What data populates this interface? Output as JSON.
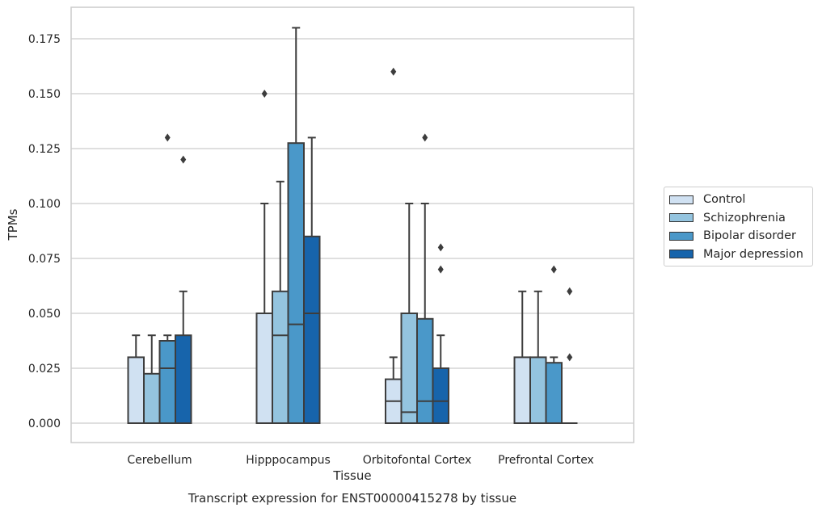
{
  "chart_data": {
    "type": "box",
    "title": "",
    "caption": "Transcript expression for ENST00000415278 by tissue",
    "xlabel": "Tissue",
    "ylabel": "TPMs",
    "ylim": [
      -0.007,
      0.183
    ],
    "yticks": [
      "0.000",
      "0.025",
      "0.050",
      "0.075",
      "0.100",
      "0.125",
      "0.150",
      "0.175"
    ],
    "grid": "horizontal",
    "legend_position": "right",
    "categories": [
      "Cerebellum",
      "Hipppocampus",
      "Orbitofontal Cortex",
      "Prefrontal Cortex"
    ],
    "series": [
      {
        "name": "Control",
        "color": "#d0e1f2",
        "boxes": [
          {
            "q1": 0.0,
            "median": 0.0,
            "q3": 0.03,
            "whisker_low": 0.0,
            "whisker_high": 0.04,
            "outliers": []
          },
          {
            "q1": 0.0,
            "median": 0.0,
            "q3": 0.05,
            "whisker_low": 0.0,
            "whisker_high": 0.1,
            "outliers": [
              0.15
            ]
          },
          {
            "q1": 0.0,
            "median": 0.01,
            "q3": 0.02,
            "whisker_low": 0.0,
            "whisker_high": 0.03,
            "outliers": [
              0.16
            ]
          },
          {
            "q1": 0.0,
            "median": 0.0,
            "q3": 0.03,
            "whisker_low": 0.0,
            "whisker_high": 0.06,
            "outliers": []
          }
        ]
      },
      {
        "name": "Schizophrenia",
        "color": "#94c4df",
        "boxes": [
          {
            "q1": 0.0,
            "median": 0.0,
            "q3": 0.0225,
            "whisker_low": 0.0,
            "whisker_high": 0.04,
            "outliers": []
          },
          {
            "q1": 0.0,
            "median": 0.04,
            "q3": 0.06,
            "whisker_low": 0.0,
            "whisker_high": 0.11,
            "outliers": []
          },
          {
            "q1": 0.0,
            "median": 0.005,
            "q3": 0.05,
            "whisker_low": 0.0,
            "whisker_high": 0.1,
            "outliers": []
          },
          {
            "q1": 0.0,
            "median": 0.0,
            "q3": 0.03,
            "whisker_low": 0.0,
            "whisker_high": 0.06,
            "outliers": []
          }
        ]
      },
      {
        "name": "Bipolar disorder",
        "color": "#4a98c9",
        "boxes": [
          {
            "q1": 0.0,
            "median": 0.025,
            "q3": 0.0375,
            "whisker_low": 0.0,
            "whisker_high": 0.04,
            "outliers": [
              0.13
            ]
          },
          {
            "q1": 0.0,
            "median": 0.045,
            "q3": 0.1275,
            "whisker_low": 0.0,
            "whisker_high": 0.18,
            "outliers": []
          },
          {
            "q1": 0.0,
            "median": 0.01,
            "q3": 0.0475,
            "whisker_low": 0.0,
            "whisker_high": 0.1,
            "outliers": [
              0.13
            ]
          },
          {
            "q1": 0.0,
            "median": 0.0,
            "q3": 0.0275,
            "whisker_low": 0.0,
            "whisker_high": 0.03,
            "outliers": [
              0.07
            ]
          }
        ]
      },
      {
        "name": "Major depression",
        "color": "#1764ab",
        "boxes": [
          {
            "q1": 0.0,
            "median": 0.0,
            "q3": 0.04,
            "whisker_low": 0.0,
            "whisker_high": 0.06,
            "outliers": [
              0.12
            ]
          },
          {
            "q1": 0.0,
            "median": 0.05,
            "q3": 0.085,
            "whisker_low": 0.0,
            "whisker_high": 0.13,
            "outliers": []
          },
          {
            "q1": 0.0,
            "median": 0.01,
            "q3": 0.025,
            "whisker_low": 0.0,
            "whisker_high": 0.04,
            "outliers": [
              0.07,
              0.08
            ]
          },
          {
            "q1": 0.0,
            "median": 0.0,
            "q3": 0.0,
            "whisker_low": 0.0,
            "whisker_high": 0.0,
            "outliers": [
              0.03,
              0.06
            ]
          }
        ]
      }
    ]
  }
}
